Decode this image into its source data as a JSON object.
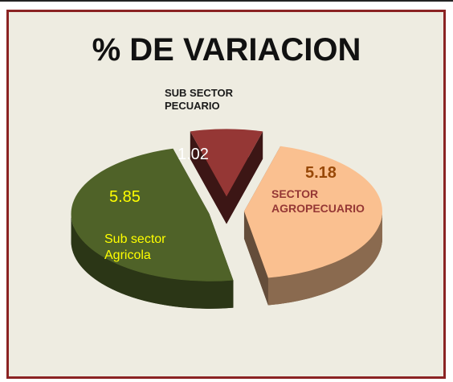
{
  "chart_data": {
    "type": "pie3d",
    "title": "% DE VARIACION",
    "categories": [
      "Sub sector Agricola",
      "SUB SECTOR PECUARIO",
      "SECTOR AGROPECUARIO"
    ],
    "values": [
      5.85,
      1.02,
      5.18
    ],
    "colors": [
      "#4f6228",
      "#953735",
      "#fac090"
    ]
  }
}
